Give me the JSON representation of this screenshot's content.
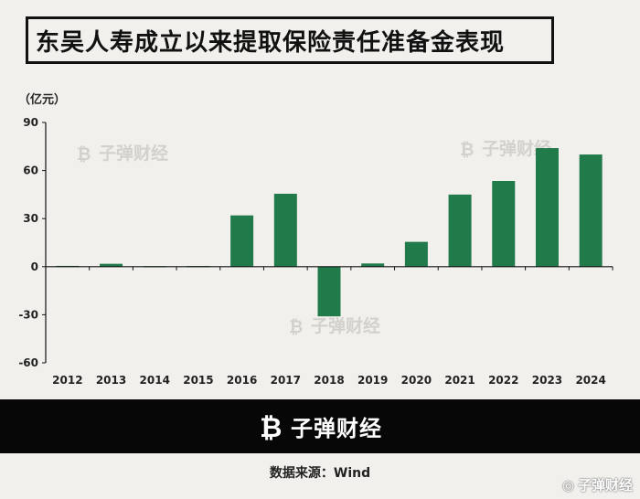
{
  "title": "东吴人寿成立以来提取保险责任准备金表现",
  "unit_label": "（亿元）",
  "brand": "子弹财经",
  "source": "数据来源：Wind",
  "corner_watermark": "子弹财经",
  "colors": {
    "bar": "#217a4a",
    "axis": "#111111",
    "background": "#f2f0ec",
    "footer": "#070707"
  },
  "chart_data": {
    "type": "bar",
    "title": "东吴人寿成立以来提取保险责任准备金表现",
    "ylabel": "亿元",
    "xlabel": "",
    "categories": [
      "2012",
      "2013",
      "2014",
      "2015",
      "2016",
      "2017",
      "2018",
      "2019",
      "2020",
      "2021",
      "2022",
      "2023",
      "2024"
    ],
    "values": [
      0.5,
      1.8,
      0.3,
      0.4,
      32,
      45.5,
      -31,
      2,
      15.5,
      45,
      53.5,
      74,
      70
    ],
    "ylim": [
      -60,
      90
    ],
    "yticks": [
      90,
      60,
      30,
      0,
      -30,
      -60
    ],
    "ytick_labels": [
      "90",
      "60",
      "30",
      "0",
      "-30",
      "-60"
    ],
    "grid": false
  }
}
